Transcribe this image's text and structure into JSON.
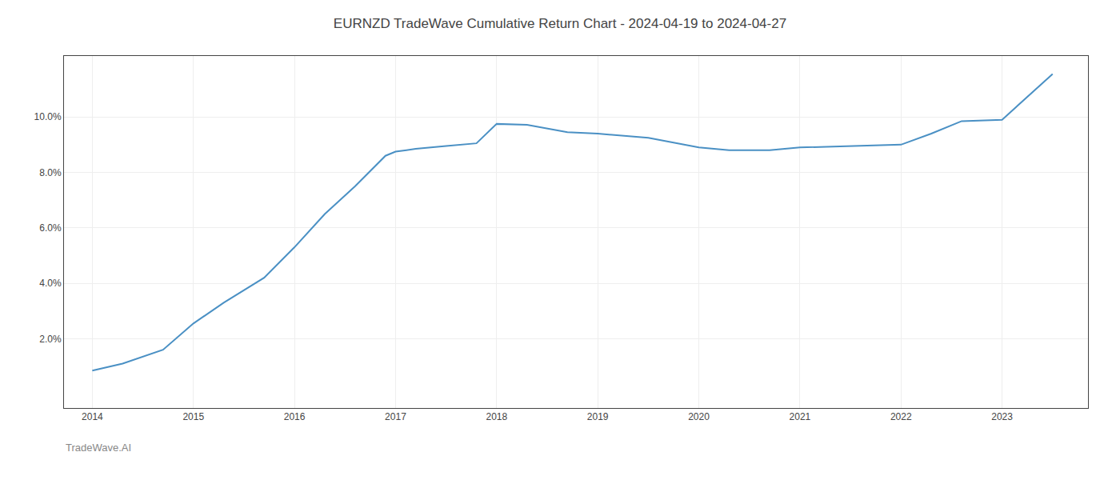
{
  "chart_data": {
    "type": "line",
    "title": "EURNZD TradeWave Cumulative Return Chart - 2024-04-19 to 2024-04-27",
    "annotations": [
      "TradeWave.AI"
    ],
    "x": [
      2014.0,
      2014.3,
      2014.7,
      2015.0,
      2015.3,
      2015.7,
      2016.0,
      2016.3,
      2016.6,
      2016.9,
      2017.0,
      2017.2,
      2017.5,
      2017.8,
      2018.0,
      2018.3,
      2018.7,
      2019.0,
      2019.5,
      2020.0,
      2020.3,
      2020.7,
      2021.0,
      2021.5,
      2022.0,
      2022.3,
      2022.6,
      2023.0,
      2023.5
    ],
    "values": [
      0.85,
      1.1,
      1.6,
      2.55,
      3.3,
      4.2,
      5.3,
      6.5,
      7.5,
      8.6,
      8.75,
      8.85,
      8.95,
      9.05,
      9.75,
      9.72,
      9.45,
      9.4,
      9.25,
      8.9,
      8.8,
      8.8,
      8.9,
      8.95,
      9.0,
      9.4,
      9.85,
      9.9,
      11.55
    ],
    "color": "#4a90c4",
    "xlim": [
      2013.72,
      2023.85
    ],
    "ylim": [
      -0.5,
      12.2
    ],
    "xticks": [
      2014,
      2015,
      2016,
      2017,
      2018,
      2019,
      2020,
      2021,
      2022,
      2023
    ],
    "yticks": [
      {
        "value": 2.0,
        "label": "2.0%"
      },
      {
        "value": 4.0,
        "label": "4.0%"
      },
      {
        "value": 6.0,
        "label": "6.0%"
      },
      {
        "value": 8.0,
        "label": "8.0%"
      },
      {
        "value": 10.0,
        "label": "10.0%"
      }
    ],
    "grid": true
  }
}
